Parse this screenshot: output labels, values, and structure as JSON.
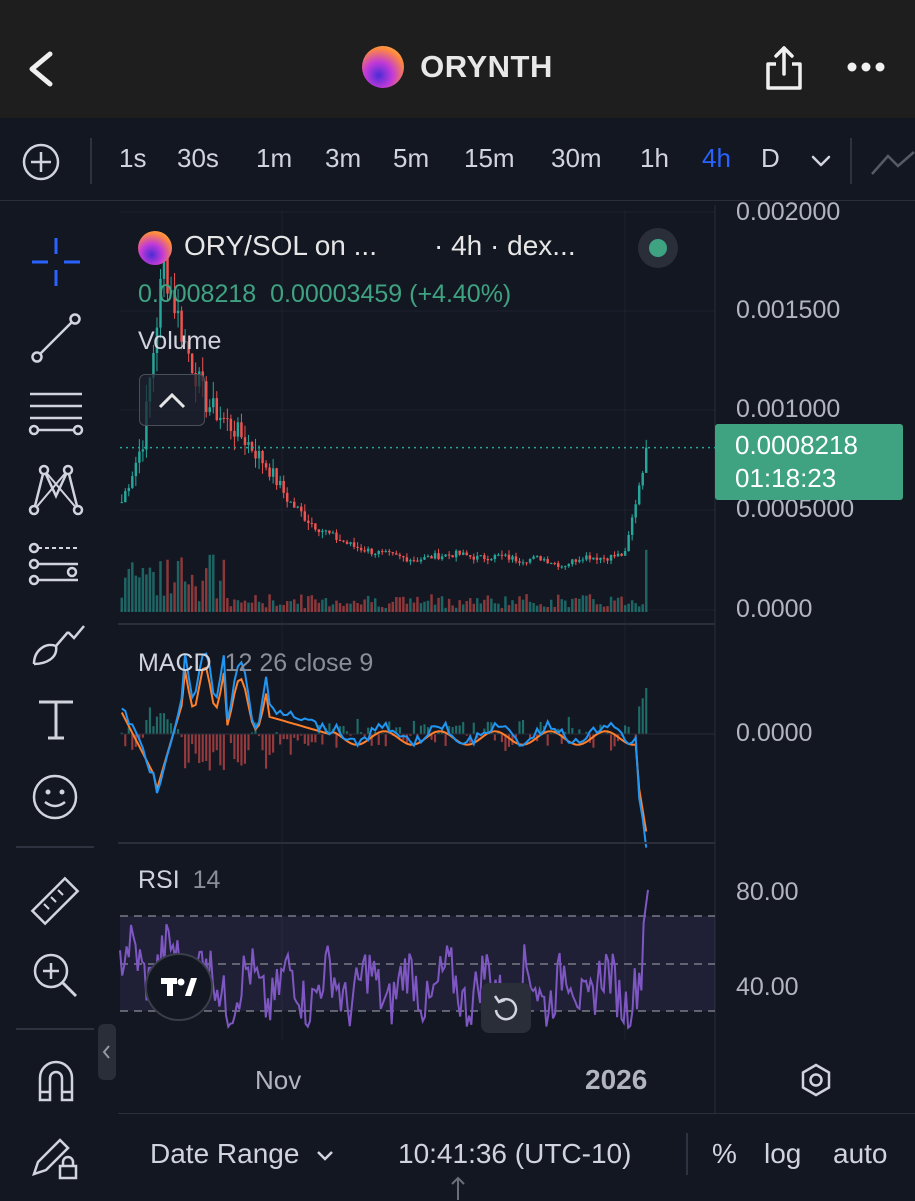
{
  "header": {
    "title": "ORYNTH",
    "back_icon": "chevron-left-icon",
    "share_icon": "share-icon",
    "more_icon": "more-horizontal-icon"
  },
  "timeframes": {
    "items": [
      "1s",
      "30s",
      "1m",
      "3m",
      "5m",
      "15m",
      "30m",
      "1h",
      "4h",
      "D"
    ],
    "active": "4h"
  },
  "legend": {
    "symbol": "ORY/SOL on ...",
    "interval": "· 4h · dex...",
    "price": "0.0008218",
    "change": "0.00003459 (+4.40%)",
    "volume_label": "Volume"
  },
  "price_axis": {
    "ticks": [
      "0.002000",
      "0.001500",
      "0.001000",
      "0.0005000",
      "0.0000"
    ],
    "last_price": "0.0008218",
    "countdown": "01:18:23"
  },
  "macd": {
    "label": "MACD",
    "params": "12 26 close 9",
    "zero_label": "0.0000"
  },
  "rsi": {
    "label": "RSI",
    "params": "14",
    "upper_label": "80.00",
    "lower_label": "40.00"
  },
  "time_axis": {
    "labels": [
      "Nov",
      "2026"
    ]
  },
  "bottom": {
    "date_range": "Date Range",
    "clock": "10:41:36 (UTC-10)",
    "percent": "%",
    "log": "log",
    "auto": "auto"
  },
  "colors": {
    "up": "#26a69a",
    "down": "#ef5350",
    "accent": "#2962ff",
    "macd_line": "#2196f3",
    "signal_line": "#ff7f2a",
    "rsi_line": "#7e57c2"
  },
  "chart_data": {
    "type": "line",
    "title": "ORY/SOL on ...",
    "series": [
      {
        "name": "ORY/SOL",
        "x": [
          0,
          4,
          8,
          12,
          16,
          20,
          24,
          28,
          32,
          36,
          40,
          44,
          48,
          52,
          56,
          60,
          64,
          68,
          72,
          76,
          80,
          84,
          88,
          92,
          96,
          100
        ],
        "values": [
          0.00055,
          0.00085,
          0.00175,
          0.00135,
          0.00105,
          0.00095,
          0.00085,
          0.00072,
          0.00055,
          0.00045,
          0.00038,
          0.00033,
          0.0003,
          0.00028,
          0.00026,
          0.00028,
          0.00029,
          0.00027,
          0.00028,
          0.00026,
          0.00027,
          0.00023,
          0.00028,
          0.00027,
          0.00029,
          0.0008218
        ]
      }
    ],
    "ylim": [
      0,
      0.002
    ],
    "xlabels": [
      "Nov",
      "2026"
    ]
  }
}
